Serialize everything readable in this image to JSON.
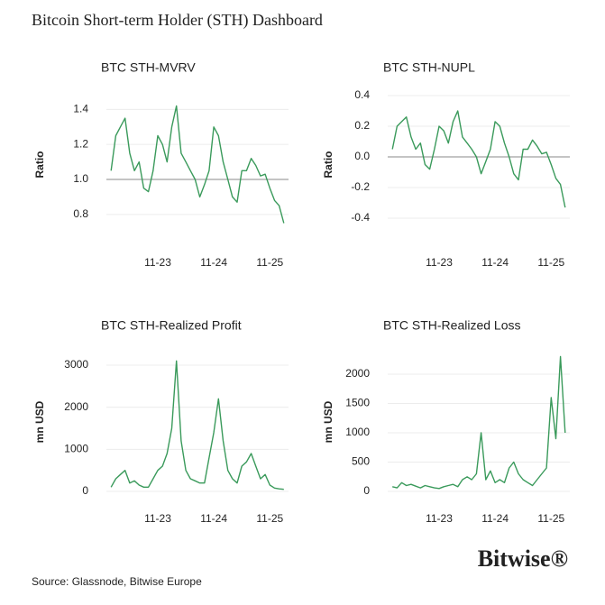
{
  "title": "Bitcoin Short-term Holder (STH) Dashboard",
  "source": "Source: Glassnode, Bitwise Europe",
  "logo": "Bitwise®",
  "chart_data": [
    {
      "type": "line",
      "title": "BTC STH-MVRV",
      "y_label": "Ratio",
      "x": [
        "2023-01",
        "2023-02",
        "2023-03",
        "2023-04",
        "2023-05",
        "2023-06",
        "2023-07",
        "2023-08",
        "2023-09",
        "2023-10",
        "2023-11",
        "2023-12",
        "2024-01",
        "2024-02",
        "2024-03",
        "2024-04",
        "2024-05",
        "2024-06",
        "2024-07",
        "2024-08",
        "2024-09",
        "2024-10",
        "2024-11",
        "2024-12",
        "2025-01",
        "2025-02",
        "2025-03",
        "2025-04",
        "2025-05",
        "2025-06",
        "2025-07",
        "2025-08",
        "2025-09",
        "2025-10",
        "2025-11",
        "2025-12",
        "2026-01",
        "2026-02"
      ],
      "series": [
        {
          "color": "#3a9a5b",
          "values": [
            1.05,
            1.25,
            1.3,
            1.35,
            1.15,
            1.05,
            1.1,
            0.95,
            0.93,
            1.05,
            1.25,
            1.2,
            1.1,
            1.3,
            1.42,
            1.15,
            1.1,
            1.05,
            1.0,
            0.9,
            0.97,
            1.05,
            1.3,
            1.25,
            1.1,
            1.0,
            0.9,
            0.87,
            1.05,
            1.05,
            1.12,
            1.08,
            1.02,
            1.03,
            0.95,
            0.88,
            0.85,
            0.75
          ]
        }
      ],
      "reference_line": 1,
      "xlim": [
        "2022-12",
        "2026-03"
      ],
      "xticks": [
        {
          "value": "2023-11",
          "label": "11-23"
        },
        {
          "value": "2024-11",
          "label": "11-24"
        },
        {
          "value": "2025-11",
          "label": "11-25"
        }
      ],
      "ylim": [
        0.66,
        1.51
      ],
      "yticks": [
        0.8,
        {
          "value": 1,
          "label": "1.0"
        },
        1.2,
        1.4
      ],
      "grid": true
    },
    {
      "type": "line",
      "title": "BTC STH-NUPL",
      "y_label": "Ratio",
      "x": [
        "2023-01",
        "2023-02",
        "2023-03",
        "2023-04",
        "2023-05",
        "2023-06",
        "2023-07",
        "2023-08",
        "2023-09",
        "2023-10",
        "2023-11",
        "2023-12",
        "2024-01",
        "2024-02",
        "2024-03",
        "2024-04",
        "2024-05",
        "2024-06",
        "2024-07",
        "2024-08",
        "2024-09",
        "2024-10",
        "2024-11",
        "2024-12",
        "2025-01",
        "2025-02",
        "2025-03",
        "2025-04",
        "2025-05",
        "2025-06",
        "2025-07",
        "2025-08",
        "2025-09",
        "2025-10",
        "2025-11",
        "2025-12",
        "2026-01",
        "2026-02"
      ],
      "series": [
        {
          "color": "#3a9a5b",
          "values": [
            0.05,
            0.2,
            0.23,
            0.26,
            0.13,
            0.05,
            0.09,
            -0.05,
            -0.08,
            0.05,
            0.2,
            0.17,
            0.09,
            0.23,
            0.3,
            0.13,
            0.09,
            0.05,
            0,
            -0.11,
            -0.03,
            0.05,
            0.23,
            0.2,
            0.09,
            0,
            -0.11,
            -0.15,
            0.05,
            0.05,
            0.11,
            0.07,
            0.02,
            0.03,
            -0.05,
            -0.14,
            -0.18,
            -0.33
          ]
        }
      ],
      "reference_line": 0,
      "xlim": [
        "2022-12",
        "2026-03"
      ],
      "xticks": [
        {
          "value": "2023-11",
          "label": "11-23"
        },
        {
          "value": "2024-11",
          "label": "11-24"
        },
        {
          "value": "2025-11",
          "label": "11-25"
        }
      ],
      "ylim": [
        -0.535,
        0.435
      ],
      "yticks": [
        -0.4,
        -0.2,
        {
          "value": 0,
          "label": "0.0"
        },
        0.2,
        0.4
      ],
      "grid": true
    },
    {
      "type": "line",
      "title": "BTC STH-Realized Profit",
      "y_label": "mn USD",
      "x": [
        "2023-01",
        "2023-02",
        "2023-03",
        "2023-04",
        "2023-05",
        "2023-06",
        "2023-07",
        "2023-08",
        "2023-09",
        "2023-10",
        "2023-11",
        "2023-12",
        "2024-01",
        "2024-02",
        "2024-03",
        "2024-04",
        "2024-05",
        "2024-06",
        "2024-07",
        "2024-08",
        "2024-09",
        "2024-10",
        "2024-11",
        "2024-12",
        "2025-01",
        "2025-02",
        "2025-03",
        "2025-04",
        "2025-05",
        "2025-06",
        "2025-07",
        "2025-08",
        "2025-09",
        "2025-10",
        "2025-11",
        "2025-12",
        "2026-01",
        "2026-02"
      ],
      "series": [
        {
          "color": "#3a9a5b",
          "values": [
            100,
            300,
            400,
            500,
            200,
            250,
            150,
            100,
            100,
            300,
            500,
            600,
            900,
            1500,
            3100,
            1200,
            500,
            300,
            250,
            200,
            200,
            800,
            1400,
            2200,
            1200,
            500,
            300,
            200,
            600,
            700,
            900,
            600,
            300,
            400,
            150,
            80,
            60,
            50
          ]
        }
      ],
      "xlim": [
        "2022-12",
        "2026-03"
      ],
      "xticks": [
        {
          "value": "2023-11",
          "label": "11-23"
        },
        {
          "value": "2024-11",
          "label": "11-24"
        },
        {
          "value": "2025-11",
          "label": "11-25"
        }
      ],
      "ylim": [
        0,
        3300
      ],
      "yticks": [
        0,
        1000,
        2000,
        3000
      ],
      "grid": true
    },
    {
      "type": "line",
      "title": "BTC STH-Realized Loss",
      "y_label": "mn USD",
      "x": [
        "2023-01",
        "2023-02",
        "2023-03",
        "2023-04",
        "2023-05",
        "2023-06",
        "2023-07",
        "2023-08",
        "2023-09",
        "2023-10",
        "2023-11",
        "2023-12",
        "2024-01",
        "2024-02",
        "2024-03",
        "2024-04",
        "2024-05",
        "2024-06",
        "2024-07",
        "2024-08",
        "2024-09",
        "2024-10",
        "2024-11",
        "2024-12",
        "2025-01",
        "2025-02",
        "2025-03",
        "2025-04",
        "2025-05",
        "2025-06",
        "2025-07",
        "2025-08",
        "2025-09",
        "2025-10",
        "2025-11",
        "2025-12",
        "2026-01",
        "2026-02"
      ],
      "series": [
        {
          "color": "#3a9a5b",
          "values": [
            80,
            60,
            150,
            100,
            120,
            90,
            60,
            100,
            80,
            60,
            50,
            80,
            100,
            120,
            80,
            200,
            250,
            200,
            300,
            1000,
            200,
            350,
            150,
            200,
            150,
            400,
            500,
            300,
            200,
            150,
            100,
            200,
            300,
            400,
            1600,
            900,
            2300,
            1000
          ]
        }
      ],
      "xlim": [
        "2022-12",
        "2026-03"
      ],
      "xticks": [
        {
          "value": "2023-11",
          "label": "11-23"
        },
        {
          "value": "2024-11",
          "label": "11-24"
        },
        {
          "value": "2025-11",
          "label": "11-25"
        }
      ],
      "ylim": [
        0,
        2370
      ],
      "yticks": [
        0,
        500,
        1000,
        1500,
        2000
      ],
      "grid": true
    }
  ]
}
